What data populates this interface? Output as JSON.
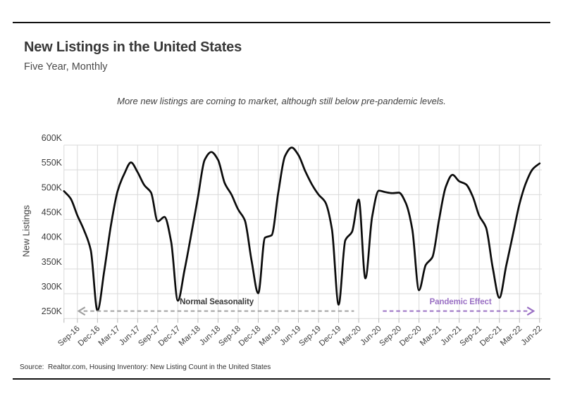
{
  "report": {
    "title": "New Listings in the United States",
    "subtitle": "Five Year, Monthly",
    "note": "More new listings are coming to market, although still below pre-pandemic levels.",
    "source": "Source:  Realtor.com, Housing Inventory: New Listing Count in the United States"
  },
  "chart_data": {
    "type": "line",
    "title": "New Listings in the United States",
    "ylabel": "New Listings",
    "units": "thousands of listings (K)",
    "grid": true,
    "ylim": [
      250,
      600
    ],
    "x": [
      "Jul-16",
      "Aug-16",
      "Sep-16",
      "Oct-16",
      "Nov-16",
      "Dec-16",
      "Jan-17",
      "Feb-17",
      "Mar-17",
      "Apr-17",
      "May-17",
      "Jun-17",
      "Jul-17",
      "Aug-17",
      "Sep-17",
      "Oct-17",
      "Nov-17",
      "Dec-17",
      "Jan-18",
      "Feb-18",
      "Mar-18",
      "Apr-18",
      "May-18",
      "Jun-18",
      "Jul-18",
      "Aug-18",
      "Sep-18",
      "Oct-18",
      "Nov-18",
      "Dec-18",
      "Jan-19",
      "Feb-19",
      "Mar-19",
      "Apr-19",
      "May-19",
      "Jun-19",
      "Jul-19",
      "Aug-19",
      "Sep-19",
      "Oct-19",
      "Nov-19",
      "Dec-19",
      "Jan-20",
      "Feb-20",
      "Mar-20",
      "Apr-20",
      "May-20",
      "Jun-20",
      "Jul-20",
      "Aug-20",
      "Sep-20",
      "Oct-20",
      "Nov-20",
      "Dec-20",
      "Jan-21",
      "Feb-21",
      "Mar-21",
      "Apr-21",
      "May-21",
      "Jun-21",
      "Jul-21",
      "Aug-21",
      "Sep-21",
      "Oct-21",
      "Nov-21",
      "Dec-21",
      "Jan-22",
      "Feb-22",
      "Mar-22",
      "Apr-22",
      "May-22",
      "Jun-22"
    ],
    "series": [
      {
        "name": "New Listings (K)",
        "color": "#0b0b0b",
        "values": [
          507,
          492,
          458,
          428,
          388,
          266,
          345,
          437,
          507,
          542,
          565,
          545,
          519,
          504,
          446,
          455,
          405,
          286,
          348,
          420,
          495,
          570,
          586,
          570,
          523,
          500,
          470,
          448,
          367,
          301,
          413,
          418,
          505,
          578,
          595,
          580,
          548,
          521,
          500,
          485,
          430,
          278,
          408,
          425,
          490,
          331,
          455,
          508,
          505,
          503,
          504,
          484,
          430,
          307,
          358,
          374,
          450,
          516,
          540,
          527,
          521,
          497,
          457,
          434,
          353,
          292,
          355,
          418,
          481,
          525,
          552,
          563
        ]
      }
    ],
    "x_tick_labels": [
      "Sep-16",
      "Dec-16",
      "Mar-17",
      "Jun-17",
      "Sep-17",
      "Dec-17",
      "Mar-18",
      "Jun-18",
      "Sep-18",
      "Dec-18",
      "Mar-19",
      "Jun-19",
      "Sep-19",
      "Dec-19",
      "Mar-20",
      "Jun-20",
      "Sep-20",
      "Dec-20",
      "Mar-21",
      "Jun-21",
      "Sep-21",
      "Dec-21",
      "Mar-22",
      "Jun-22"
    ],
    "y_ticks": {
      "labels": [
        "600K",
        "550K",
        "500K",
        "450K",
        "400K",
        "350K",
        "300K",
        "250K"
      ],
      "values": [
        600,
        550,
        500,
        450,
        400,
        350,
        300,
        250
      ]
    },
    "annotations": [
      {
        "id": "normal-seasonality",
        "label": "Normal Seasonality",
        "color": "#3a3a3a",
        "arrow_color": "#a0a0a0",
        "arrow_direction": "left",
        "arrow_month_span": [
          2.2,
          43.3
        ],
        "arrow_y": 265,
        "label_month": 22.8,
        "label_y": 283
      },
      {
        "id": "pandemic-effect",
        "label": "Pandemic Effect",
        "color": "#9a70c4",
        "arrow_color": "#9a70c4",
        "arrow_direction": "right",
        "arrow_month_span": [
          47.6,
          70.1
        ],
        "arrow_y": 265,
        "label_month": 59.2,
        "label_y": 283
      }
    ]
  }
}
